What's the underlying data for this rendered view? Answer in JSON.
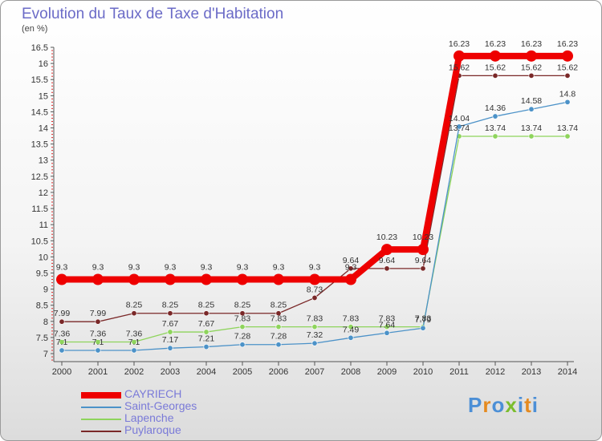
{
  "chart_data": {
    "type": "line",
    "title": "Evolution du Taux de Taxe d'Habitation",
    "subtitle": "(en %)",
    "x": [
      "2000",
      "2001",
      "2002",
      "2003",
      "2004",
      "2005",
      "2006",
      "2007",
      "2008",
      "2009",
      "2010",
      "2011",
      "2012",
      "2013",
      "2014"
    ],
    "ylim": [
      7,
      16.5
    ],
    "yticks": [
      "7",
      "7.5",
      "8",
      "8.5",
      "9",
      "9.5",
      "10",
      "10.5",
      "11",
      "11.5",
      "12",
      "12.5",
      "13",
      "13.5",
      "14",
      "14.5",
      "15",
      "15.5",
      "16",
      "16.5"
    ],
    "grid": false,
    "legend_position": "bottom-left",
    "series": [
      {
        "name": "CAYRIECH",
        "color": "#ee0000",
        "values": [
          9.3,
          9.3,
          9.3,
          9.3,
          9.3,
          9.3,
          9.3,
          9.3,
          9.3,
          10.23,
          10.23,
          16.23,
          16.23,
          16.23,
          16.23
        ],
        "labels": [
          "9.3",
          "9.3",
          "9.3",
          "9.3",
          "9.3",
          "9.3",
          "9.3",
          "9.3",
          "9.3",
          "10.23",
          "10.23",
          "16.23",
          "16.23",
          "16.23",
          "16.23"
        ]
      },
      {
        "name": "Saint-Georges",
        "color": "#4c92c8",
        "values": [
          7.1,
          7.1,
          7.1,
          7.17,
          7.21,
          7.28,
          7.28,
          7.32,
          7.49,
          7.64,
          7.79,
          14.04,
          14.36,
          14.58,
          14.8
        ],
        "labels": [
          "7.1",
          "7.1",
          "7.1",
          "7.17",
          "7.21",
          "7.28",
          "7.28",
          "7.32",
          "7.49",
          "7.64",
          "7.79",
          "14.04",
          "14.36",
          "14.58",
          "14.8"
        ]
      },
      {
        "name": "Lapenche",
        "color": "#8ed45c",
        "values": [
          7.36,
          7.36,
          7.36,
          7.67,
          7.67,
          7.83,
          7.83,
          7.83,
          7.83,
          7.83,
          7.83,
          13.74,
          13.74,
          13.74,
          13.74
        ],
        "labels": [
          "7.36",
          "7.36",
          "7.36",
          "7.67",
          "7.67",
          "7.83",
          "7.83",
          "7.83",
          "7.83",
          "7.83",
          "7.83",
          "13.74",
          "13.74",
          "13.74",
          "13.74"
        ]
      },
      {
        "name": "Puylaroque",
        "color": "#7a2828",
        "values": [
          7.99,
          7.99,
          8.25,
          8.25,
          8.25,
          8.25,
          8.25,
          8.73,
          9.64,
          9.64,
          9.64,
          15.62,
          15.62,
          15.62,
          15.62
        ],
        "labels": [
          "7.99",
          "7.99",
          "8.25",
          "8.25",
          "8.25",
          "8.25",
          "8.25",
          "8.73",
          "9.64",
          "9.64",
          "9.64",
          "15.62",
          "15.62",
          "15.62",
          "15.62"
        ]
      }
    ]
  },
  "brand": {
    "text": "Proxiti",
    "colors": [
      "#4c8fd6",
      "#e58a1f",
      "#4c8fd6",
      "#7bbd2e",
      "#4c8fd6",
      "#e58a1f",
      "#4c8fd6"
    ]
  }
}
